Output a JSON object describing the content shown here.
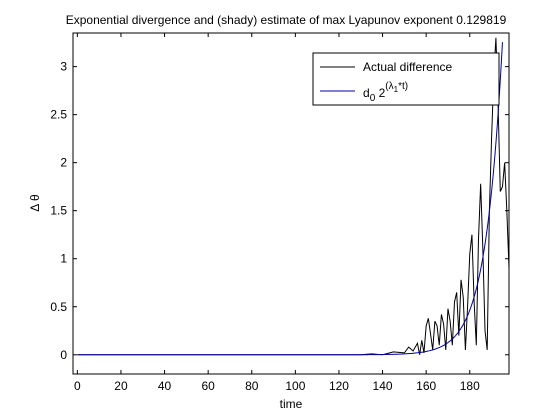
{
  "chart_data": {
    "type": "line",
    "title": "Exponential divergence and (shady) estimate of max Lyapunov exponent 0.129819",
    "xlabel": "time",
    "ylabel": "Δ θ",
    "xlim": [
      -2,
      198
    ],
    "ylim": [
      -0.2,
      3.35
    ],
    "xticks": [
      0,
      20,
      40,
      60,
      80,
      100,
      120,
      140,
      160,
      180
    ],
    "yticks": [
      0,
      0.5,
      1,
      1.5,
      2,
      2.5,
      3
    ],
    "xtick_labels": [
      "0",
      "20",
      "40",
      "60",
      "80",
      "100",
      "120",
      "140",
      "160",
      "180"
    ],
    "ytick_labels": [
      "0",
      "0.5",
      "1",
      "1.5",
      "2",
      "2.5",
      "3"
    ],
    "grid": false,
    "legend": {
      "position": "top-right",
      "entries": [
        {
          "label": "Actual difference",
          "color": "#000000"
        },
        {
          "label_base": "d",
          "label_sub": "0",
          "label_mid": " 2",
          "label_sup_open": "(λ",
          "label_sup_sub": "1",
          "label_sup_close": "*t)",
          "color": "#0000a0"
        }
      ]
    },
    "series": [
      {
        "key": "actual",
        "color": "#000000",
        "x": [
          0,
          100,
          118,
          125,
          130,
          135,
          140,
          145,
          150,
          152,
          154,
          156,
          157,
          158,
          159,
          160,
          161,
          162,
          163,
          164,
          165,
          166,
          167,
          168,
          169,
          170,
          171,
          172,
          173,
          174,
          175,
          176,
          177,
          178,
          179,
          180,
          181,
          182,
          183,
          184,
          185,
          186,
          187,
          188,
          189,
          190,
          191,
          192,
          193,
          194,
          195,
          196,
          197,
          198
        ],
        "y": [
          0,
          0,
          0,
          0,
          0,
          0.01,
          0.0,
          0.03,
          0.02,
          0.08,
          0.04,
          0.12,
          0.0,
          0.15,
          0.02,
          0.3,
          0.38,
          0.22,
          0.05,
          0.35,
          0.3,
          0.1,
          0.42,
          0.32,
          0.05,
          0.48,
          0.35,
          0.1,
          0.55,
          0.65,
          0.2,
          0.78,
          0.6,
          0.05,
          0.5,
          1.05,
          1.25,
          0.55,
          0.1,
          1.2,
          1.78,
          1.1,
          0.25,
          0.05,
          1.5,
          2.25,
          2.9,
          3.3,
          2.6,
          1.7,
          1.75,
          2.0,
          1.5,
          0.9
        ]
      },
      {
        "key": "estimate",
        "color": "#0000a0",
        "function": "exp",
        "d0": 3.3e-11,
        "lambda": 0.129819,
        "x_start": 0,
        "x_end": 195
      }
    ]
  }
}
